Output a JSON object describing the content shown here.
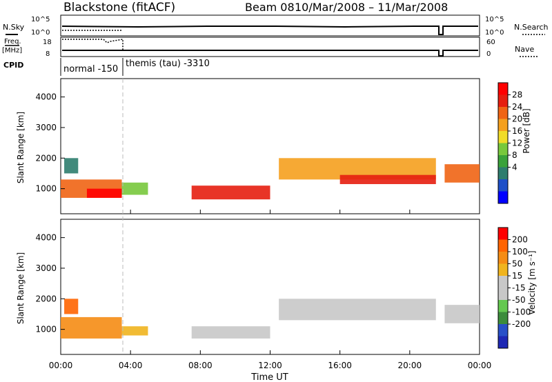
{
  "header": {
    "station": "Blackstone (fitACF)",
    "beam": "Beam 08",
    "dates": "10/Mar/2008 – 11/Mar/2008"
  },
  "top_panels": {
    "nsky_label": "N.Sky",
    "nsky_ticks": [
      "10^5",
      "10^0"
    ],
    "nsearch_label": "N.Search",
    "nsearch_ticks": [
      "10^5",
      "10^0"
    ],
    "freq_label_1": "Freq.",
    "freq_label_2": "[MHz]",
    "freq_ticks": [
      "18",
      "8"
    ],
    "nave_label": "Nave",
    "nave_ticks": [
      "60",
      "0"
    ],
    "cpid_label": "CPID",
    "cpid_modes": [
      {
        "text": "normal -150",
        "start_hour": 0
      },
      {
        "text": "themis (tau) -3310",
        "start_hour": 3.5
      }
    ]
  },
  "colors": {
    "power_scale": [
      "#0000ff",
      "#1e50c8",
      "#2e7d6e",
      "#3aa23a",
      "#78c83c",
      "#f0dc28",
      "#f5a01e",
      "#f06414",
      "#e61e0f",
      "#ff0000"
    ],
    "velocity_scale": [
      "#1e28b4",
      "#2850c8",
      "#3c8c3c",
      "#64c850",
      "#c8c8c8",
      "#c8c8c8",
      "#f0b41e",
      "#f58c14",
      "#ff6400",
      "#ff0000"
    ]
  },
  "chart_data": [
    {
      "type": "heatmap",
      "panel": "power",
      "ylabel": "Slant Range [km]",
      "yticks": [
        "4000",
        "3000",
        "2000",
        "1000"
      ],
      "ylim": [
        180,
        4600
      ],
      "xlim": [
        0,
        24
      ],
      "colorbar_label": "Power [dB]",
      "colorbar_ticks": [
        "28",
        "24",
        "20",
        "16",
        "12",
        "8",
        "4"
      ],
      "regions": [
        {
          "t0": 0.0,
          "t1": 3.5,
          "r0": 700,
          "r1": 1300,
          "level": 7
        },
        {
          "t0": 1.5,
          "t1": 3.5,
          "r0": 700,
          "r1": 1000,
          "level": 9
        },
        {
          "t0": 3.5,
          "t1": 5.0,
          "r0": 800,
          "r1": 1200,
          "level": 4
        },
        {
          "t0": 0.2,
          "t1": 1.0,
          "r0": 1500,
          "r1": 2000,
          "level": 2
        },
        {
          "t0": 7.5,
          "t1": 12.0,
          "r0": 650,
          "r1": 1100,
          "level": 8
        },
        {
          "t0": 12.5,
          "t1": 21.5,
          "r0": 1300,
          "r1": 2000,
          "level": 6
        },
        {
          "t0": 16.0,
          "t1": 21.5,
          "r0": 1150,
          "r1": 1450,
          "level": 8
        },
        {
          "t0": 22.0,
          "t1": 24.0,
          "r0": 1200,
          "r1": 1800,
          "level": 7
        }
      ]
    },
    {
      "type": "heatmap",
      "panel": "velocity",
      "ylabel": "Slant Range [km]",
      "yticks": [
        "4000",
        "3000",
        "2000",
        "1000"
      ],
      "ylim": [
        180,
        4600
      ],
      "xlim": [
        0,
        24
      ],
      "colorbar_label": "Velocity [m s⁻¹]",
      "colorbar_ticks": [
        "200",
        "100",
        "50",
        "15",
        "-15",
        "-50",
        "-100",
        "-200"
      ],
      "regions": [
        {
          "t0": 0.0,
          "t1": 3.5,
          "r0": 700,
          "r1": 1400,
          "level": 7
        },
        {
          "t0": 0.2,
          "t1": 1.0,
          "r0": 1500,
          "r1": 2000,
          "level": 8
        },
        {
          "t0": 3.5,
          "t1": 5.0,
          "r0": 800,
          "r1": 1100,
          "level": 6
        },
        {
          "t0": 7.5,
          "t1": 12.0,
          "r0": 700,
          "r1": 1100,
          "level": 5
        },
        {
          "t0": 12.5,
          "t1": 21.5,
          "r0": 1300,
          "r1": 2000,
          "level": 4
        },
        {
          "t0": 22.0,
          "t1": 24.0,
          "r0": 1200,
          "r1": 1800,
          "level": 4
        }
      ]
    }
  ],
  "xaxis": {
    "label": "Time UT",
    "ticks": [
      "00:00",
      "04:00",
      "08:00",
      "12:00",
      "16:00",
      "20:00",
      "00:00"
    ]
  }
}
